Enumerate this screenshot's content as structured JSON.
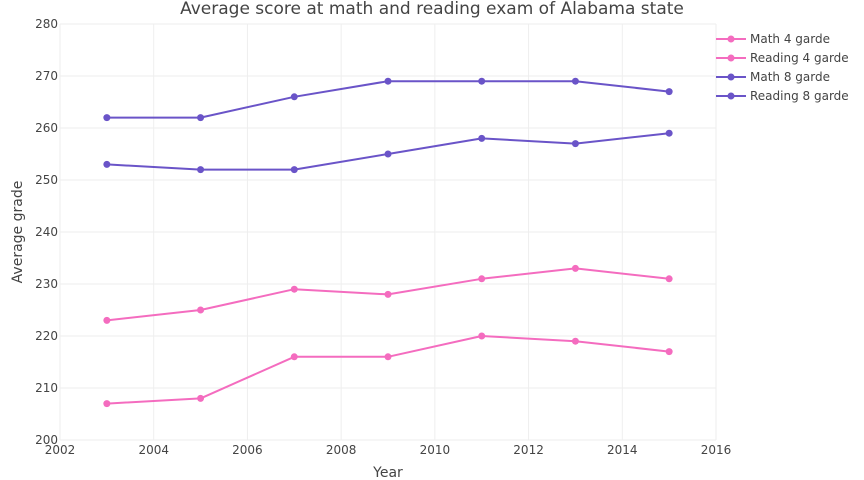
{
  "chart_data": {
    "type": "line",
    "title": "Average score at math and reading exam of Alabama state",
    "xlabel": "Year",
    "ylabel": "Average grade",
    "xlim": [
      2002,
      2016
    ],
    "ylim": [
      200,
      280
    ],
    "x_ticks": [
      2002,
      2004,
      2006,
      2008,
      2010,
      2012,
      2014,
      2016
    ],
    "y_ticks": [
      200,
      210,
      220,
      230,
      240,
      250,
      260,
      270,
      280
    ],
    "grid": true,
    "legend_position": "top-right",
    "x": [
      2003,
      2005,
      2007,
      2009,
      2011,
      2013,
      2015
    ],
    "series": [
      {
        "name": "Math 4 garde",
        "color": "#f46cbf",
        "values": [
          223,
          225,
          229,
          228,
          231,
          233,
          231
        ]
      },
      {
        "name": "Reading 4 garde",
        "color": "#f46cbf",
        "values": [
          207,
          208,
          216,
          216,
          220,
          219,
          217
        ]
      },
      {
        "name": "Math 8 garde",
        "color": "#6a54c8",
        "values": [
          262,
          262,
          266,
          269,
          269,
          269,
          267
        ]
      },
      {
        "name": "Reading 8 garde",
        "color": "#6a54c8",
        "values": [
          253,
          252,
          252,
          255,
          258,
          257,
          259
        ]
      }
    ]
  }
}
